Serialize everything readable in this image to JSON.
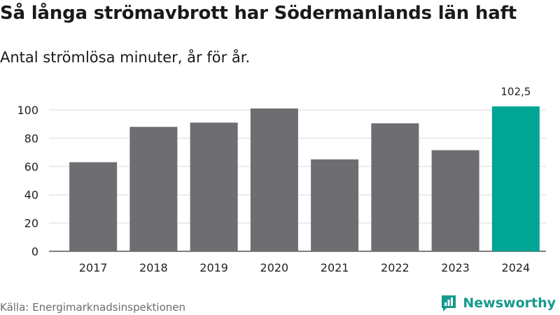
{
  "header": {
    "title": "Så långa strömavbrott har Södermanlands län haft",
    "subtitle": "Antal strömlösa minuter, år för år."
  },
  "footer": {
    "source": "Källa: Energimarknadsinspektionen",
    "brand": "Newsworthy"
  },
  "colors": {
    "bar_default": "#6e6d72",
    "bar_highlight": "#00a595",
    "gridline": "#d9d9d9",
    "baseline": "#333333",
    "brand": "#159a8c"
  },
  "chart_data": {
    "type": "bar",
    "title": "Så långa strömavbrott har Södermanlands län haft",
    "subtitle": "Antal strömlösa minuter, år för år.",
    "xlabel": "",
    "ylabel": "",
    "categories": [
      "2017",
      "2018",
      "2019",
      "2020",
      "2021",
      "2022",
      "2023",
      "2024"
    ],
    "values": [
      63,
      88,
      91,
      101,
      65,
      90.5,
      71.5,
      102.5
    ],
    "highlight_index": 7,
    "labeled_values": [
      {
        "index": 7,
        "label": "102,5"
      }
    ],
    "ylim": [
      0,
      110
    ],
    "yticks": [
      0,
      20,
      40,
      60,
      80,
      100
    ],
    "grid": true
  }
}
